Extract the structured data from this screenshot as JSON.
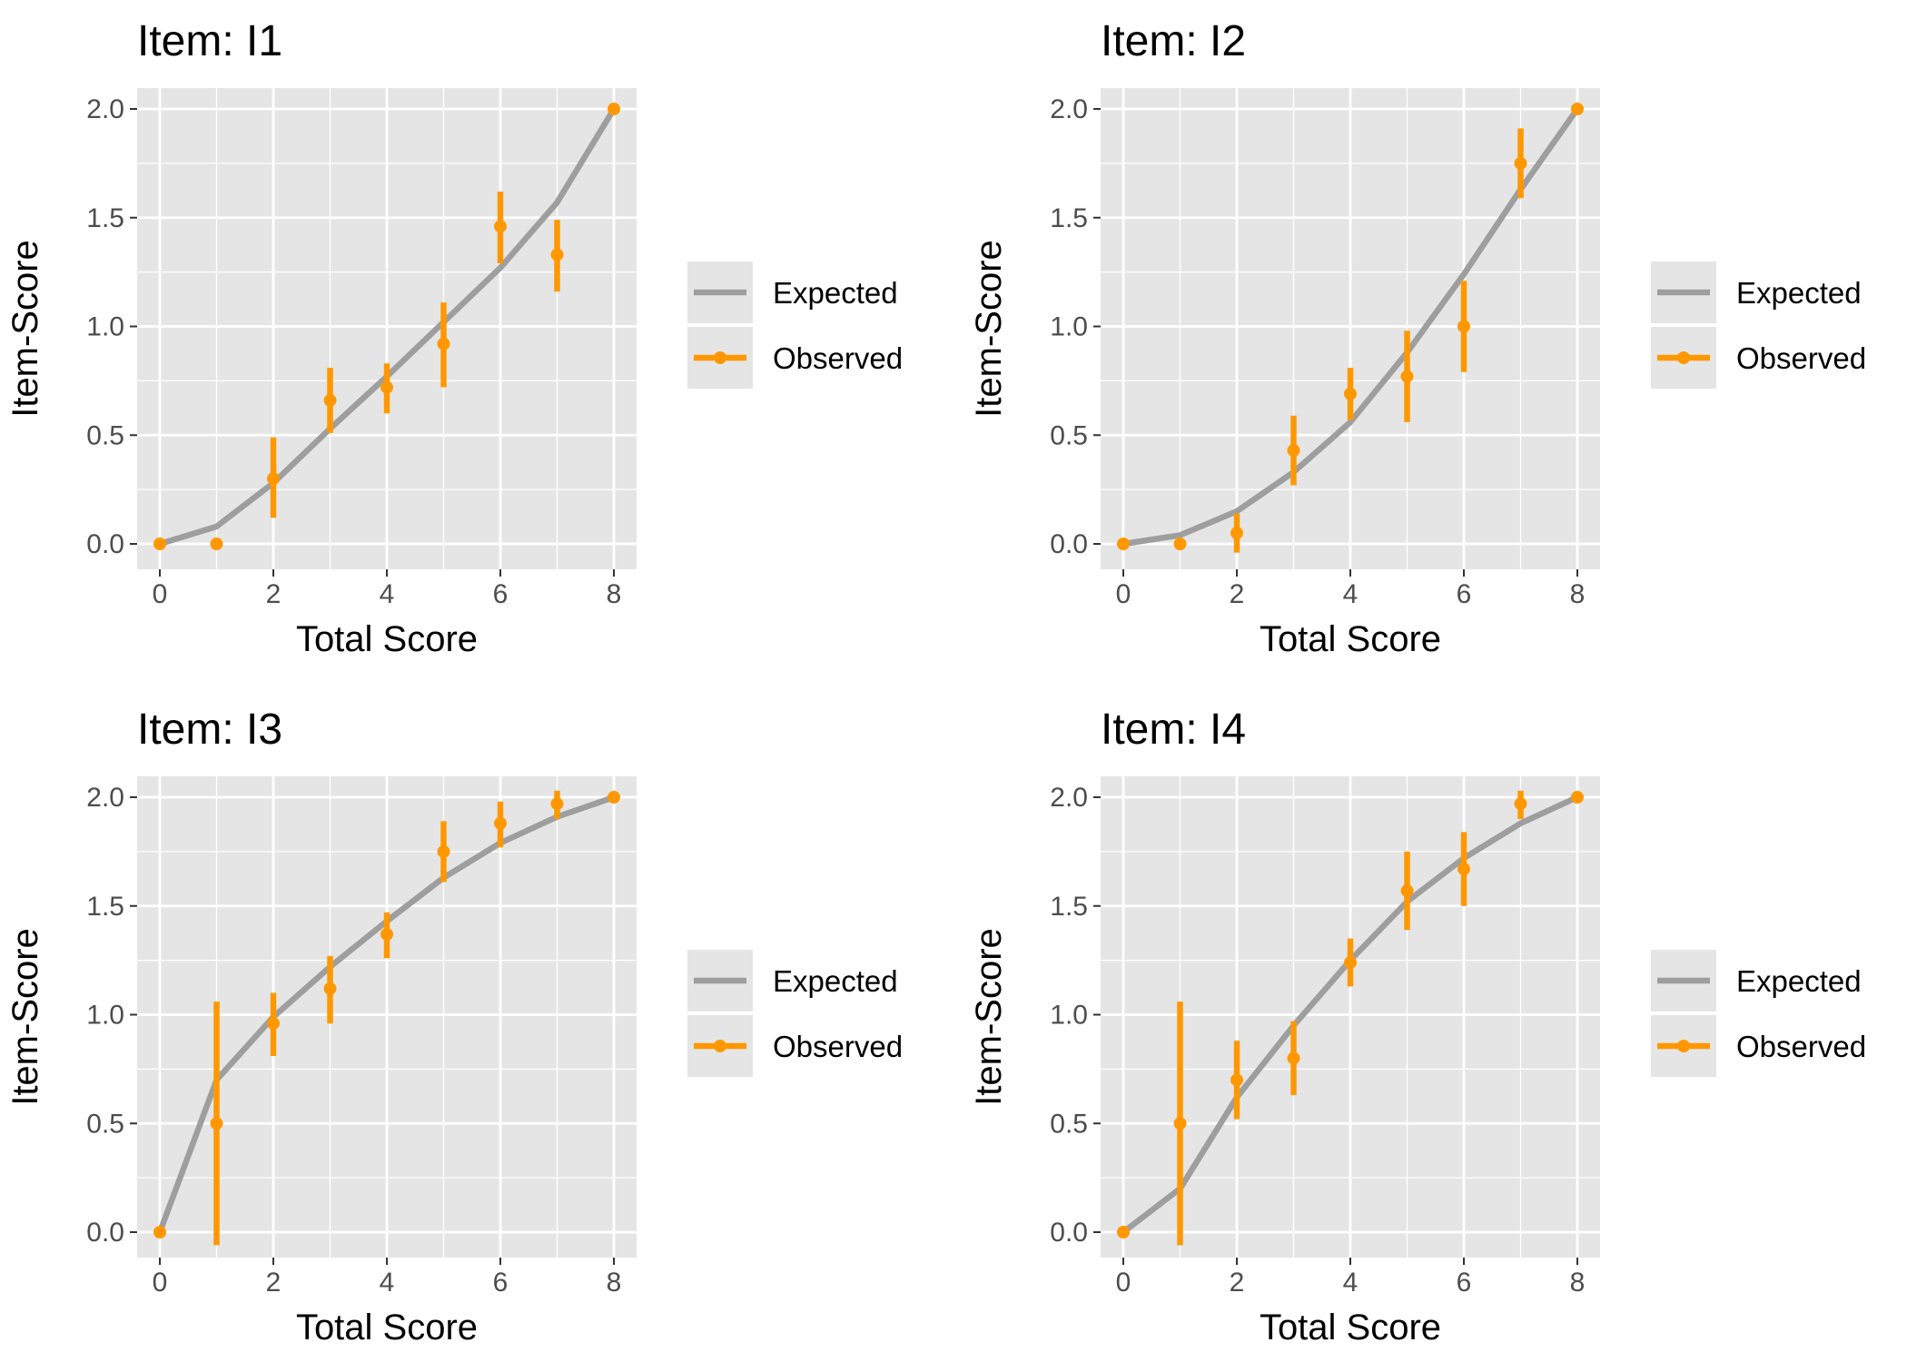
{
  "colors": {
    "panel_background": "#e5e5e5",
    "grid": "#ffffff",
    "expected": "#9e9e9e",
    "observed": "#ff9800",
    "tick_label": "#4d4d4d",
    "legend_key_background": "#e5e5e5"
  },
  "chart_data": [
    {
      "type": "line",
      "title": "Item: I1",
      "xlabel": "Total Score",
      "ylabel": "Item-Score",
      "xlim": [
        0,
        8
      ],
      "ylim": [
        0,
        2
      ],
      "xticks": [
        "0",
        "2",
        "4",
        "6",
        "8"
      ],
      "yticks": [
        "0.0",
        "0.5",
        "1.0",
        "1.5",
        "2.0"
      ],
      "grid": true,
      "legend_position": "right",
      "legend": [
        "Expected",
        "Observed"
      ],
      "series": [
        {
          "name": "Expected",
          "x": [
            0,
            1,
            2,
            3,
            4,
            5,
            6,
            7,
            8
          ],
          "y": [
            0.0,
            0.08,
            0.28,
            0.53,
            0.77,
            1.02,
            1.27,
            1.57,
            2.0
          ]
        },
        {
          "name": "Observed",
          "x": [
            0,
            1,
            2,
            3,
            4,
            5,
            6,
            7,
            8
          ],
          "y": [
            0.0,
            0.0,
            0.3,
            0.66,
            0.72,
            0.92,
            1.46,
            1.33,
            2.0
          ],
          "lower": [
            null,
            null,
            0.12,
            0.51,
            0.6,
            0.72,
            1.29,
            1.16,
            null
          ],
          "upper": [
            null,
            null,
            0.49,
            0.81,
            0.83,
            1.11,
            1.62,
            1.49,
            null
          ]
        }
      ]
    },
    {
      "type": "line",
      "title": "Item: I2",
      "xlabel": "Total Score",
      "ylabel": "Item-Score",
      "xlim": [
        0,
        8
      ],
      "ylim": [
        0,
        2
      ],
      "xticks": [
        "0",
        "2",
        "4",
        "6",
        "8"
      ],
      "yticks": [
        "0.0",
        "0.5",
        "1.0",
        "1.5",
        "2.0"
      ],
      "grid": true,
      "legend_position": "right",
      "legend": [
        "Expected",
        "Observed"
      ],
      "series": [
        {
          "name": "Expected",
          "x": [
            0,
            1,
            2,
            3,
            4,
            5,
            6,
            7,
            8
          ],
          "y": [
            0.0,
            0.04,
            0.15,
            0.33,
            0.56,
            0.88,
            1.24,
            1.63,
            2.0
          ]
        },
        {
          "name": "Observed",
          "x": [
            0,
            1,
            2,
            3,
            4,
            5,
            6,
            7,
            8
          ],
          "y": [
            0.0,
            0.0,
            0.05,
            0.43,
            0.69,
            0.77,
            1.0,
            1.75,
            2.0
          ],
          "lower": [
            null,
            null,
            -0.04,
            0.27,
            0.57,
            0.56,
            0.79,
            1.59,
            null
          ],
          "upper": [
            null,
            null,
            0.14,
            0.59,
            0.81,
            0.98,
            1.21,
            1.91,
            null
          ]
        }
      ]
    },
    {
      "type": "line",
      "title": "Item: I3",
      "xlabel": "Total Score",
      "ylabel": "Item-Score",
      "xlim": [
        0,
        8
      ],
      "ylim": [
        0,
        2
      ],
      "xticks": [
        "0",
        "2",
        "4",
        "6",
        "8"
      ],
      "yticks": [
        "0.0",
        "0.5",
        "1.0",
        "1.5",
        "2.0"
      ],
      "grid": true,
      "legend_position": "right",
      "legend": [
        "Expected",
        "Observed"
      ],
      "series": [
        {
          "name": "Expected",
          "x": [
            0,
            1,
            2,
            3,
            4,
            5,
            6,
            7,
            8
          ],
          "y": [
            0.0,
            0.7,
            0.99,
            1.22,
            1.43,
            1.63,
            1.79,
            1.91,
            2.0
          ]
        },
        {
          "name": "Observed",
          "x": [
            0,
            1,
            2,
            3,
            4,
            5,
            6,
            7,
            8
          ],
          "y": [
            0.0,
            0.5,
            0.96,
            1.12,
            1.37,
            1.75,
            1.88,
            1.97,
            2.0
          ],
          "lower": [
            null,
            -0.06,
            0.81,
            0.96,
            1.26,
            1.61,
            1.77,
            1.9,
            null
          ],
          "upper": [
            null,
            1.06,
            1.1,
            1.27,
            1.47,
            1.89,
            1.98,
            2.03,
            null
          ]
        }
      ]
    },
    {
      "type": "line",
      "title": "Item: I4",
      "xlabel": "Total Score",
      "ylabel": "Item-Score",
      "xlim": [
        0,
        8
      ],
      "ylim": [
        0,
        2
      ],
      "xticks": [
        "0",
        "2",
        "4",
        "6",
        "8"
      ],
      "yticks": [
        "0.0",
        "0.5",
        "1.0",
        "1.5",
        "2.0"
      ],
      "grid": true,
      "legend_position": "right",
      "legend": [
        "Expected",
        "Observed"
      ],
      "series": [
        {
          "name": "Expected",
          "x": [
            0,
            1,
            2,
            3,
            4,
            5,
            6,
            7,
            8
          ],
          "y": [
            0.0,
            0.2,
            0.62,
            0.95,
            1.25,
            1.52,
            1.72,
            1.88,
            2.0
          ]
        },
        {
          "name": "Observed",
          "x": [
            0,
            1,
            2,
            3,
            4,
            5,
            6,
            7,
            8
          ],
          "y": [
            0.0,
            0.5,
            0.7,
            0.8,
            1.24,
            1.57,
            1.67,
            1.97,
            2.0
          ],
          "lower": [
            null,
            -0.06,
            0.52,
            0.63,
            1.13,
            1.39,
            1.5,
            1.9,
            null
          ],
          "upper": [
            null,
            1.06,
            0.88,
            0.97,
            1.35,
            1.75,
            1.84,
            2.03,
            null
          ]
        }
      ]
    }
  ]
}
